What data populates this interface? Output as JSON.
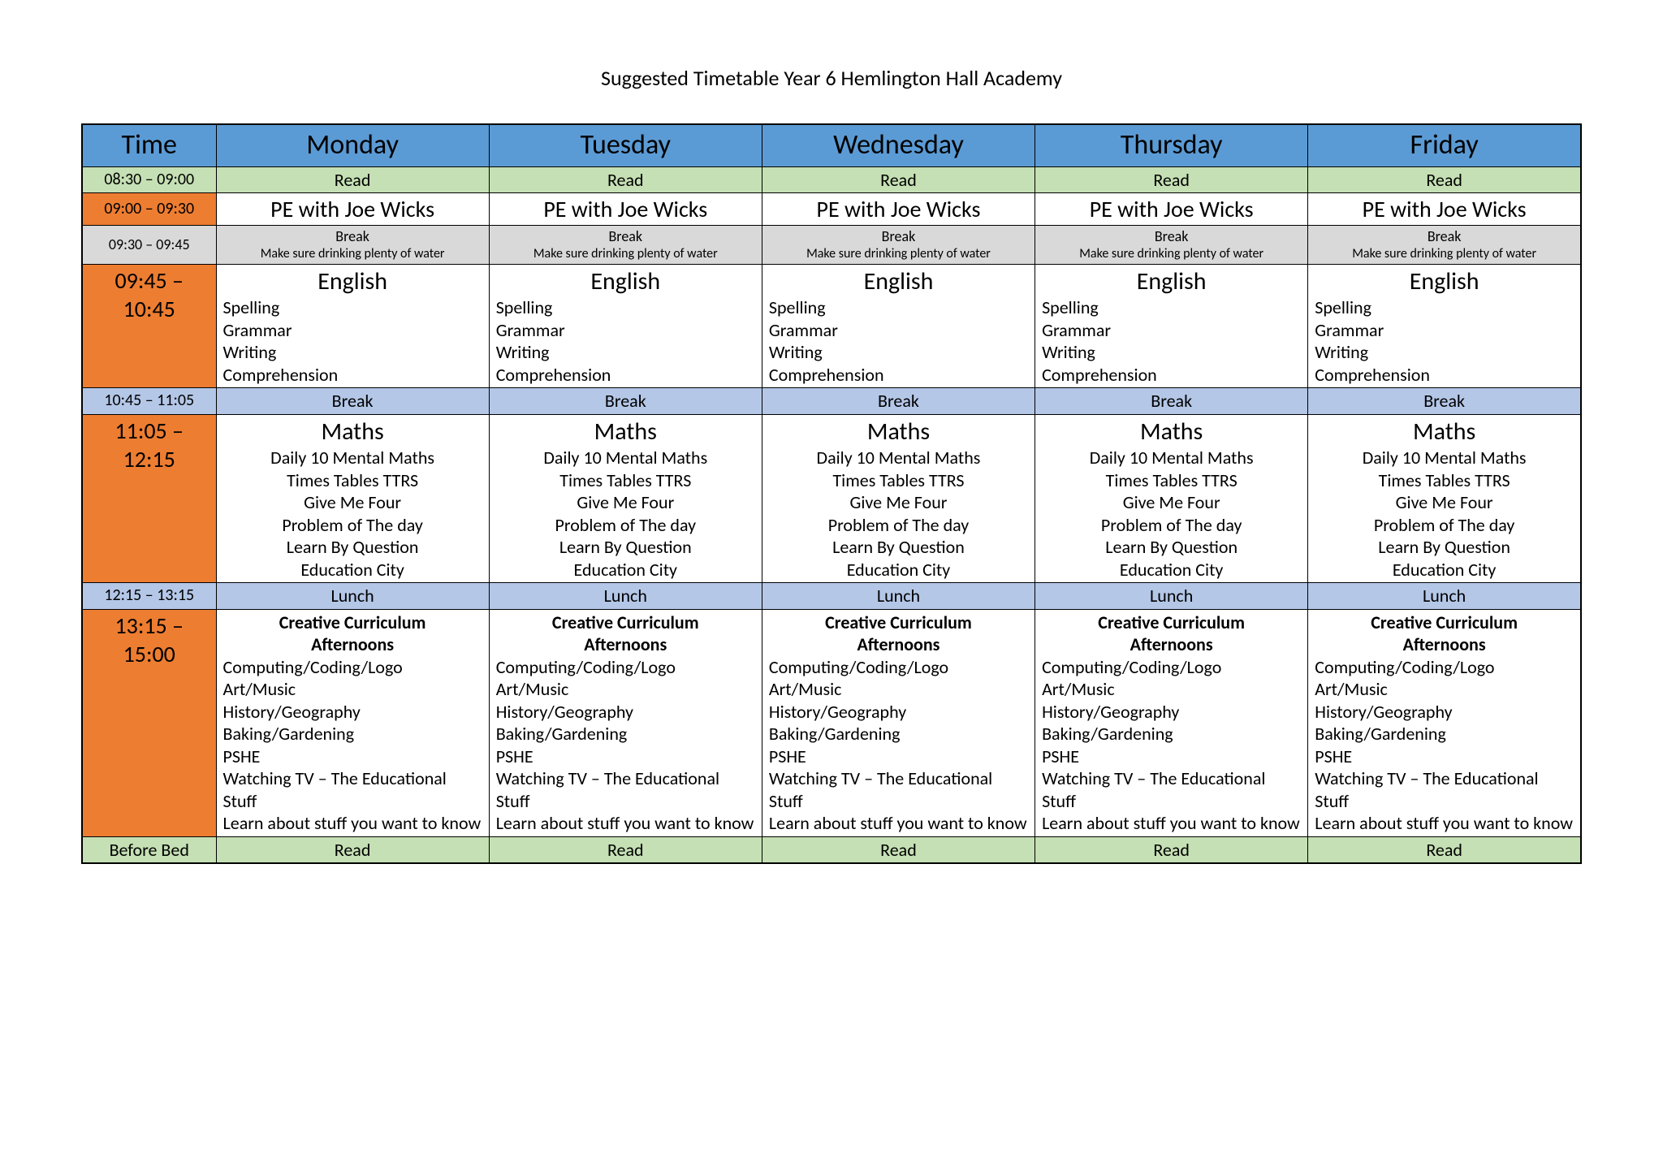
{
  "title": "Suggested Timetable Year 6 Hemlington Hall Academy",
  "colors": {
    "header_bg": "#5b9bd5",
    "read_bg": "#c5e0b4",
    "pe_time_bg": "#ed7d31",
    "break1_bg": "#d9d9d9",
    "english_time_bg": "#ed7d31",
    "break2_bg": "#b4c7e7",
    "maths_time_bg": "#ed7d31",
    "lunch_bg": "#b4c7e7",
    "afternoon_time_bg": "#ed7d31",
    "bed_bg": "#c5e0b4",
    "border": "#000000",
    "page_bg": "#ffffff",
    "text": "#000000"
  },
  "columns": {
    "time_header": "Time",
    "days": [
      "Monday",
      "Tuesday",
      "Wednesday",
      "Thursday",
      "Friday"
    ]
  },
  "rows": [
    {
      "id": "read_am",
      "time": "08:30 – 09:00",
      "time_bg_key": "read_bg",
      "time_font_size": 20,
      "day_bg_key": "read_bg",
      "cell_kind": "simple_center",
      "cell_font_size": 22,
      "content": "Read"
    },
    {
      "id": "pe",
      "time": "09:00 – 09:30",
      "time_bg_key": "pe_time_bg",
      "time_font_size": 20,
      "day_bg_key": null,
      "cell_kind": "heading_only",
      "heading": "PE with Joe Wicks",
      "heading_font_size": 28
    },
    {
      "id": "break1",
      "time": "09:30 – 09:45",
      "time_bg_key": "break1_bg",
      "time_font_size": 18,
      "day_bg_key": "break1_bg",
      "cell_kind": "two_line_small",
      "line1": "Break",
      "line2": "Make sure drinking plenty of water",
      "line1_font_size": 18,
      "line2_font_size": 16
    },
    {
      "id": "english",
      "time": "09:45 –\n10:45",
      "time_bg_key": "english_time_bg",
      "time_font_size": 28,
      "day_bg_key": null,
      "cell_kind": "heading_list_left",
      "heading": "English",
      "heading_font_size": 30,
      "items": [
        "Spelling",
        "Grammar",
        "Writing",
        "Comprehension"
      ],
      "item_font_size": 22
    },
    {
      "id": "break2",
      "time": "10:45 – 11:05",
      "time_bg_key": "break2_bg",
      "time_font_size": 20,
      "day_bg_key": "break2_bg",
      "cell_kind": "simple_center",
      "cell_font_size": 22,
      "content": "Break"
    },
    {
      "id": "maths",
      "time": "11:05 –\n12:15",
      "time_bg_key": "maths_time_bg",
      "time_font_size": 28,
      "day_bg_key": null,
      "cell_kind": "heading_list_center",
      "heading": "Maths",
      "heading_font_size": 30,
      "items": [
        "Daily 10 Mental Maths",
        "Times Tables TTRS",
        "Give Me Four",
        "Problem of The day",
        "Learn By Question",
        "Education City"
      ],
      "item_font_size": 22
    },
    {
      "id": "lunch",
      "time": "12:15 – 13:15",
      "time_bg_key": "lunch_bg",
      "time_font_size": 20,
      "day_bg_key": "lunch_bg",
      "cell_kind": "simple_center",
      "cell_font_size": 22,
      "content": "Lunch"
    },
    {
      "id": "afternoon",
      "time": "13:15 –\n15:00",
      "time_bg_key": "afternoon_time_bg",
      "time_font_size": 28,
      "day_bg_key": null,
      "cell_kind": "bold_heading_list_left",
      "heading_lines": [
        "Creative Curriculum",
        "Afternoons"
      ],
      "heading_font_size": 22,
      "items": [
        "Computing/Coding/Logo",
        "Art/Music",
        "History/Geography",
        "Baking/Gardening",
        "PSHE",
        "Watching TV – The Educational Stuff",
        "Learn about stuff you want to know"
      ],
      "item_font_size": 22
    },
    {
      "id": "bed",
      "time": "Before Bed",
      "time_bg_key": "bed_bg",
      "time_font_size": 22,
      "day_bg_key": "bed_bg",
      "cell_kind": "simple_center",
      "cell_font_size": 22,
      "content": "Read"
    }
  ]
}
